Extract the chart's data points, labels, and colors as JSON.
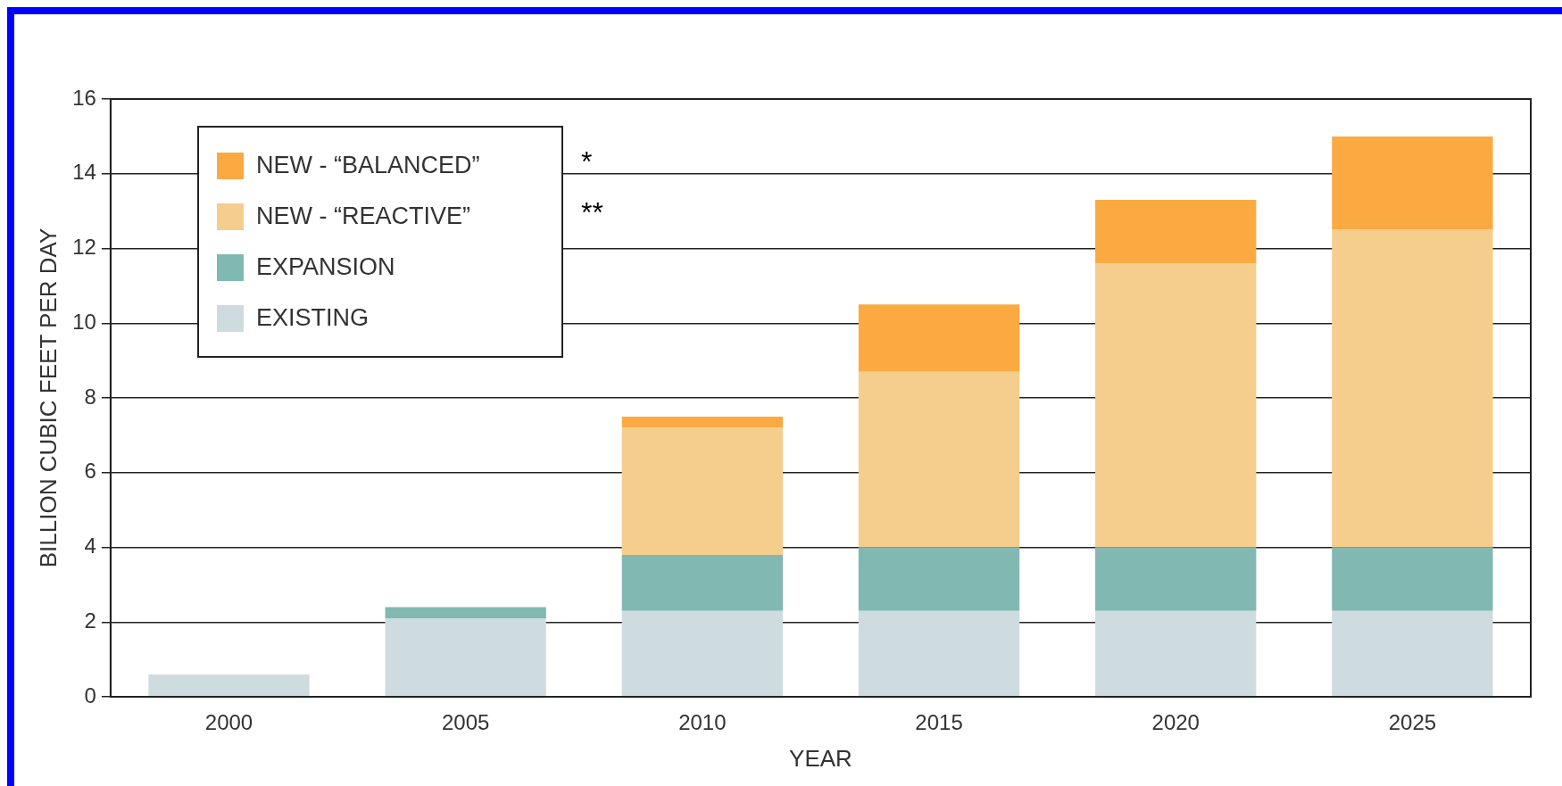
{
  "chart_data": {
    "type": "bar",
    "stacked": true,
    "xlabel": "YEAR",
    "ylabel": "BILLION CUBIC FEET PER DAY",
    "categories": [
      "2000",
      "2005",
      "2010",
      "2015",
      "2020",
      "2025"
    ],
    "series": [
      {
        "name": "EXISTING",
        "color": "#cfdcdf",
        "values": [
          0.6,
          2.1,
          2.3,
          2.3,
          2.3,
          2.3
        ]
      },
      {
        "name": "EXPANSION",
        "color": "#82b8b2",
        "values": [
          0,
          0.3,
          1.5,
          1.7,
          1.7,
          1.7
        ]
      },
      {
        "name": "NEW - “REACTIVE”",
        "color": "#f5cd8c",
        "values": [
          0,
          0,
          3.4,
          4.7,
          7.6,
          8.5
        ]
      },
      {
        "name": "NEW - “BALANCED”",
        "color": "#fbaa42",
        "values": [
          0,
          0,
          0.3,
          1.8,
          1.7,
          2.5
        ]
      }
    ],
    "annotations": [
      "*",
      "**"
    ],
    "ylim": [
      0,
      16
    ],
    "yticks": [
      0,
      2,
      4,
      6,
      8,
      10,
      12,
      14,
      16
    ],
    "grid": "y",
    "legend": "top left"
  }
}
